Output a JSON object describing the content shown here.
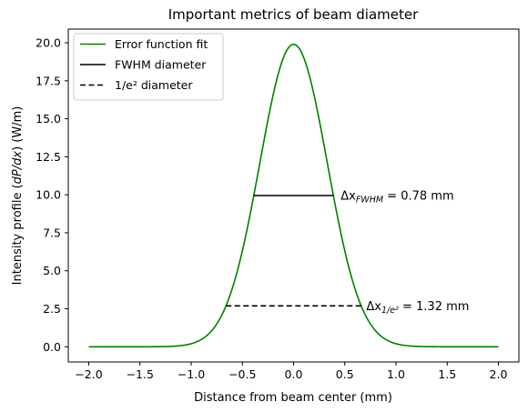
{
  "chart_data": {
    "type": "line",
    "title": "Important metrics of beam diameter",
    "xlabel": "Distance from beam center (mm)",
    "ylabel": "Intensity profile (dP/dx) (W/m)",
    "xlim": [
      -2.2,
      2.2
    ],
    "ylim": [
      -1.0,
      20.9
    ],
    "xticks": [
      -2.0,
      -1.5,
      -1.0,
      -0.5,
      0.0,
      0.5,
      1.0,
      1.5,
      2.0
    ],
    "xtick_labels": [
      "−2.0",
      "−1.5",
      "−1.0",
      "−0.5",
      "0.0",
      "0.5",
      "1.0",
      "1.5",
      "2.0"
    ],
    "yticks": [
      0.0,
      2.5,
      5.0,
      7.5,
      10.0,
      12.5,
      15.0,
      17.5,
      20.0
    ],
    "ytick_labels": [
      "0.0",
      "2.5",
      "5.0",
      "7.5",
      "10.0",
      "12.5",
      "15.0",
      "17.5",
      "20.0"
    ],
    "grid": false,
    "legend_position": "top-left",
    "series": [
      {
        "name": "Error function fit",
        "kind": "gaussian",
        "peak": 19.9,
        "center": 0.0,
        "w_1e2": 0.66,
        "x_range": [
          -2.0,
          2.0
        ],
        "color": "#008000",
        "style": "solid"
      },
      {
        "name": "FWHM diameter",
        "x": [
          -0.39,
          0.39
        ],
        "y": [
          9.95,
          9.95
        ],
        "color": "#000000",
        "style": "solid"
      },
      {
        "name": "1/e² diameter",
        "x": [
          -0.66,
          0.66
        ],
        "y": [
          2.69,
          2.69
        ],
        "color": "#000000",
        "style": "dashed"
      }
    ],
    "annotations": [
      {
        "x": 0.46,
        "y": 9.95,
        "base": "Δx",
        "sub": "FWHM",
        "rest": " = 0.78 mm"
      },
      {
        "x": 0.71,
        "y": 2.69,
        "base": "Δx",
        "sub": "1/e²",
        "rest": " = 1.32 mm"
      }
    ]
  }
}
